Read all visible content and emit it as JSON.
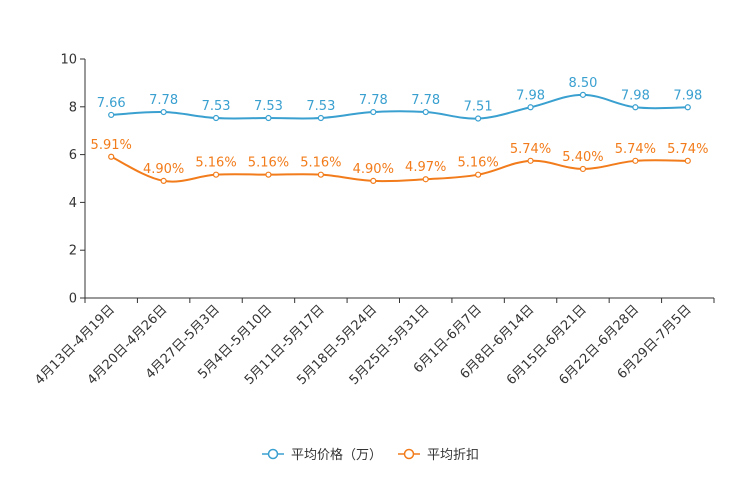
{
  "chart_data": {
    "type": "line",
    "title": "",
    "xlabel": "",
    "ylabel": "",
    "ylim": [
      0,
      10
    ],
    "yticks": [
      0,
      2,
      4,
      6,
      8,
      10
    ],
    "grid": false,
    "legend_position": "bottom-center",
    "categories": [
      "4月13日-4月19日",
      "4月20日-4月26日",
      "4月27日-5月3日",
      "5月4日-5月10日",
      "5月11日-5月17日",
      "5月18日-5月24日",
      "5月25日-5月31日",
      "6月1日-6月7日",
      "6月8日-6月14日",
      "6月15日-6月21日",
      "6月22日-6月28日",
      "6月29日-7月5日"
    ],
    "series": [
      {
        "name": "平均价格（万）",
        "color": "#3aa0d0",
        "values": [
          7.66,
          7.78,
          7.53,
          7.53,
          7.53,
          7.78,
          7.78,
          7.51,
          7.98,
          8.5,
          7.98,
          7.98
        ],
        "labels": [
          "7.66",
          "7.78",
          "7.53",
          "7.53",
          "7.53",
          "7.78",
          "7.78",
          "7.51",
          "7.98",
          "8.50",
          "7.98",
          "7.98"
        ]
      },
      {
        "name": "平均折扣",
        "color": "#f27c1b",
        "values": [
          5.91,
          4.9,
          5.16,
          5.16,
          5.16,
          4.9,
          4.97,
          5.16,
          5.74,
          5.4,
          5.74,
          5.74
        ],
        "labels": [
          "5.91%",
          "4.90%",
          "5.16%",
          "5.16%",
          "5.16%",
          "4.90%",
          "4.97%",
          "5.16%",
          "5.74%",
          "5.40%",
          "5.74%",
          "5.74%"
        ]
      }
    ]
  }
}
